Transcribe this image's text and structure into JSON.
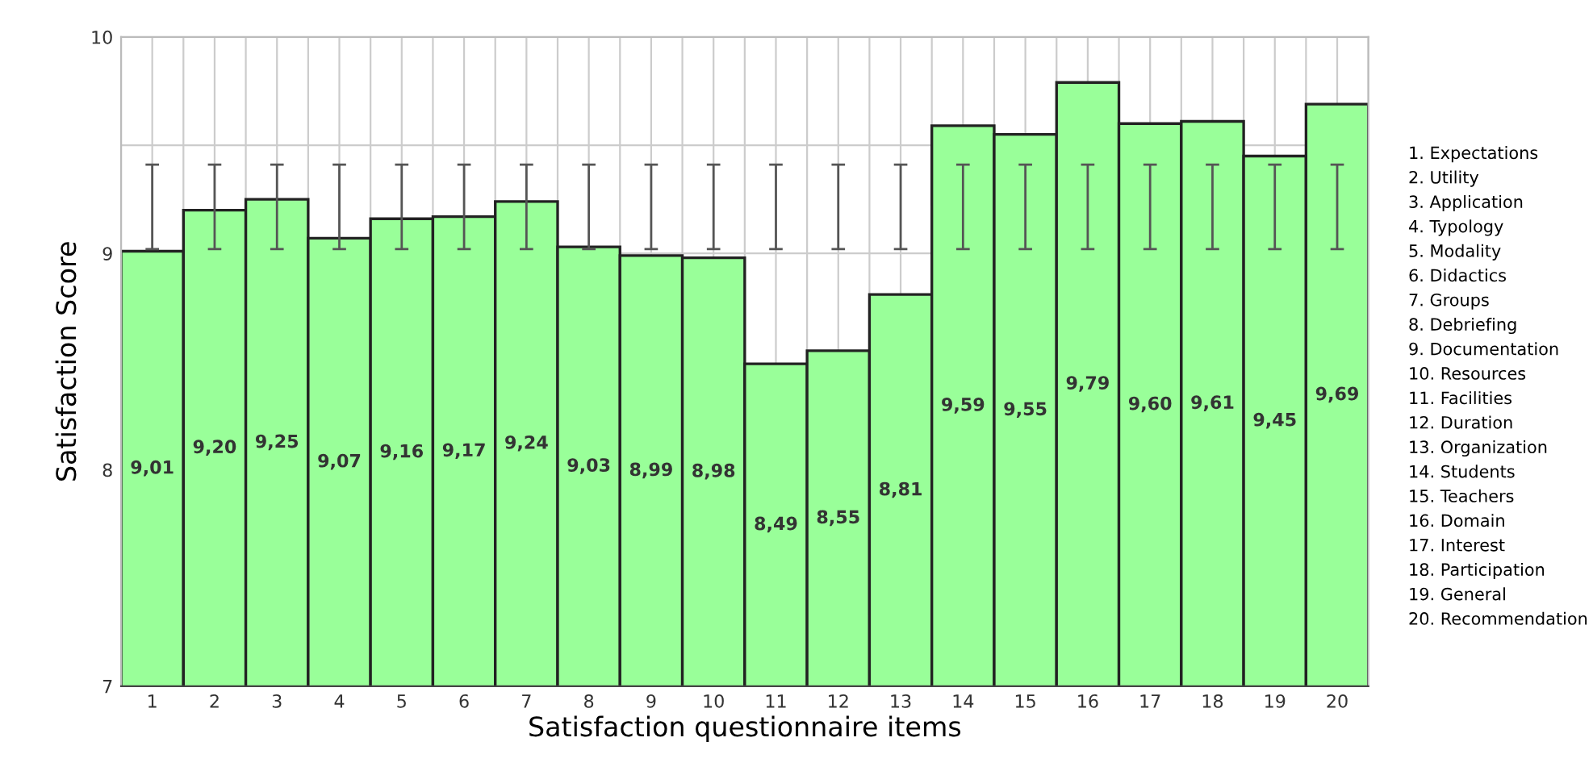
{
  "chart_data": {
    "type": "bar",
    "xlabel": "Satisfaction questionnaire items",
    "ylabel": "Satisfaction Score",
    "categories": [
      "1",
      "2",
      "3",
      "4",
      "5",
      "6",
      "7",
      "8",
      "9",
      "10",
      "11",
      "12",
      "13",
      "14",
      "15",
      "16",
      "17",
      "18",
      "19",
      "20"
    ],
    "values": [
      9.01,
      9.2,
      9.25,
      9.07,
      9.16,
      9.17,
      9.24,
      9.03,
      8.99,
      8.98,
      8.49,
      8.55,
      8.81,
      9.59,
      9.55,
      9.79,
      9.6,
      9.61,
      9.45,
      9.69
    ],
    "value_labels": [
      "9,01",
      "9,20",
      "9,25",
      "9,07",
      "9,16",
      "9,17",
      "9,24",
      "9,03",
      "8,99",
      "8,98",
      "8,49",
      "8,55",
      "8,81",
      "9,59",
      "9,55",
      "9,79",
      "9,60",
      "9,61",
      "9,45",
      "9,69"
    ],
    "errors": [
      [
        9.02,
        9.41
      ],
      [
        9.02,
        9.41
      ],
      [
        9.02,
        9.41
      ],
      [
        9.02,
        9.41
      ],
      [
        9.02,
        9.41
      ],
      [
        9.02,
        9.41
      ],
      [
        9.02,
        9.41
      ],
      [
        9.02,
        9.41
      ],
      [
        9.02,
        9.41
      ],
      [
        9.02,
        9.41
      ],
      [
        9.02,
        9.41
      ],
      [
        9.02,
        9.41
      ],
      [
        9.02,
        9.41
      ],
      [
        9.02,
        9.41
      ],
      [
        9.02,
        9.41
      ],
      [
        9.02,
        9.41
      ],
      [
        9.02,
        9.41
      ],
      [
        9.02,
        9.41
      ],
      [
        9.02,
        9.41
      ],
      [
        9.02,
        9.41
      ]
    ],
    "color": "#99ff99",
    "ylim": [
      7,
      10
    ],
    "yticks": [
      7,
      8,
      9,
      {
        "value": 9.5,
        "label": null
      },
      10
    ],
    "grid": true,
    "annotations": [
      "1. Expectations",
      "2. Utility",
      "3. Application",
      "4. Typology",
      "5. Modality",
      "6. Didactics",
      "7. Groups",
      "8. Debriefing",
      "9. Documentation",
      "10. Resources",
      "11. Facilities",
      "12. Duration",
      "13. Organization",
      "14. Students",
      "15. Teachers",
      "16. Domain",
      "17. Interest",
      "18. Participation",
      "19. General",
      "20. Recommendation"
    ]
  }
}
